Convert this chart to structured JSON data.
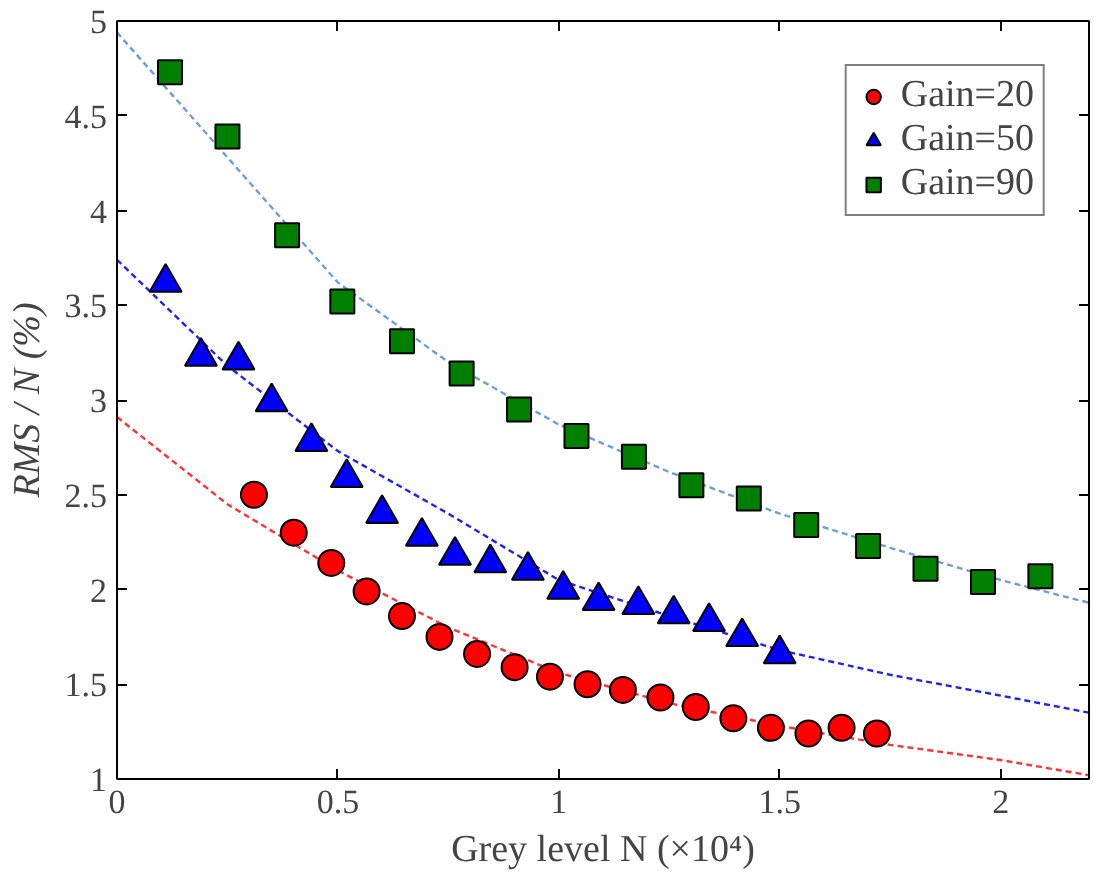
{
  "chart_data": {
    "type": "scatter",
    "xlabel": "Grey level N (×10⁴)",
    "ylabel": "RMS / N (%)",
    "xlim": [
      0,
      2.2
    ],
    "ylim": [
      1,
      5
    ],
    "xticks": [
      0,
      0.5,
      1,
      1.5,
      2
    ],
    "yticks": [
      1,
      1.5,
      2,
      2.5,
      3,
      3.5,
      4,
      4.5,
      5
    ],
    "grid": false,
    "legend": "top right",
    "series": [
      {
        "name": "Gain=20",
        "color": "#ff0000",
        "marker": "circle",
        "x": [
          0.31,
          0.4,
          0.485,
          0.565,
          0.645,
          0.73,
          0.815,
          0.9,
          0.98,
          1.065,
          1.145,
          1.23,
          1.31,
          1.395,
          1.48,
          1.565,
          1.64,
          1.72
        ],
        "values": [
          2.5,
          2.3,
          2.14,
          1.99,
          1.86,
          1.75,
          1.66,
          1.59,
          1.54,
          1.5,
          1.47,
          1.43,
          1.38,
          1.32,
          1.27,
          1.24,
          1.27,
          1.24
        ]
      },
      {
        "name": "Gain=50",
        "color": "#0000ff",
        "marker": "triangle",
        "x": [
          0.11,
          0.19,
          0.275,
          0.35,
          0.44,
          0.52,
          0.6,
          0.69,
          0.765,
          0.845,
          0.93,
          1.01,
          1.09,
          1.18,
          1.26,
          1.34,
          1.415,
          1.5
        ],
        "values": [
          3.62,
          3.23,
          3.21,
          2.99,
          2.78,
          2.59,
          2.4,
          2.28,
          2.18,
          2.14,
          2.1,
          2.0,
          1.94,
          1.92,
          1.87,
          1.83,
          1.75,
          1.66
        ]
      },
      {
        "name": "Gain=90",
        "color": "#008000",
        "marker": "square",
        "x": [
          0.12,
          0.25,
          0.385,
          0.51,
          0.645,
          0.78,
          0.91,
          1.04,
          1.17,
          1.3,
          1.43,
          1.56,
          1.7,
          1.83,
          1.96,
          2.09
        ],
        "values": [
          4.73,
          4.39,
          3.87,
          3.52,
          3.31,
          3.14,
          2.95,
          2.81,
          2.7,
          2.55,
          2.48,
          2.34,
          2.23,
          2.11,
          2.04,
          2.07
        ]
      },
      {
        "type": "line",
        "color": "#ff3333",
        "line_style": "dashed",
        "x": [
          0,
          0.25,
          0.5,
          0.75,
          1.0,
          1.25,
          1.5,
          1.75,
          2.0,
          2.2
        ],
        "values": [
          2.91,
          2.45,
          2.1,
          1.8,
          1.56,
          1.4,
          1.28,
          1.18,
          1.1,
          1.02
        ]
      },
      {
        "type": "line",
        "color": "#2222ee",
        "line_style": "dashed",
        "x": [
          0,
          0.25,
          0.5,
          0.75,
          1.0,
          1.25,
          1.5,
          1.75,
          2.0,
          2.2
        ],
        "values": [
          3.74,
          3.18,
          2.73,
          2.4,
          2.05,
          1.86,
          1.68,
          1.55,
          1.44,
          1.35
        ]
      },
      {
        "type": "line",
        "color": "#6a9fd8",
        "line_style": "dashed",
        "x": [
          0,
          0.25,
          0.5,
          0.75,
          1.0,
          1.25,
          1.5,
          1.75,
          2.0,
          2.2
        ],
        "values": [
          4.94,
          4.28,
          3.62,
          3.2,
          2.87,
          2.62,
          2.4,
          2.22,
          2.05,
          1.93
        ]
      }
    ]
  }
}
